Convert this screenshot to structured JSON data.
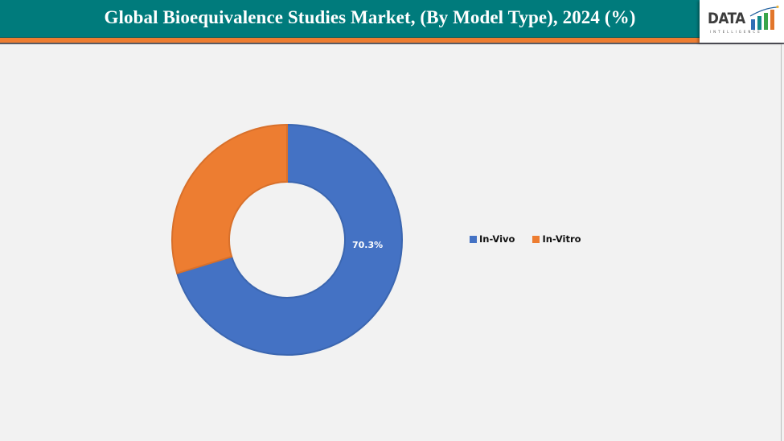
{
  "header": {
    "title": "Global Bioequivalence Studies Market, (By Model Type), 2024 (%)",
    "bg_color": "#007b7c",
    "accent_color": "#ee7d31"
  },
  "logo": {
    "word": "DATA",
    "subtitle": "INTELLIGENCE",
    "icon": "rising-bars-logo-icon"
  },
  "legend": {
    "items": [
      {
        "label": "In-Vivo",
        "color": "#4472c4"
      },
      {
        "label": "In-Vitro",
        "color": "#ed7d31"
      }
    ]
  },
  "data_labels": {
    "in_vivo": "70.3%"
  },
  "chart_data": {
    "type": "pie",
    "subtype": "donut",
    "title": "Global Bioequivalence Studies Market, (By Model Type), 2024 (%)",
    "categories": [
      "In-Vivo",
      "In-Vitro"
    ],
    "values": [
      70.3,
      29.7
    ],
    "colors": [
      "#4472c4",
      "#ed7d31"
    ],
    "data_labels_shown": [
      "70.3%",
      ""
    ],
    "legend_position": "right",
    "start_angle_deg": 0,
    "direction": "clockwise"
  }
}
